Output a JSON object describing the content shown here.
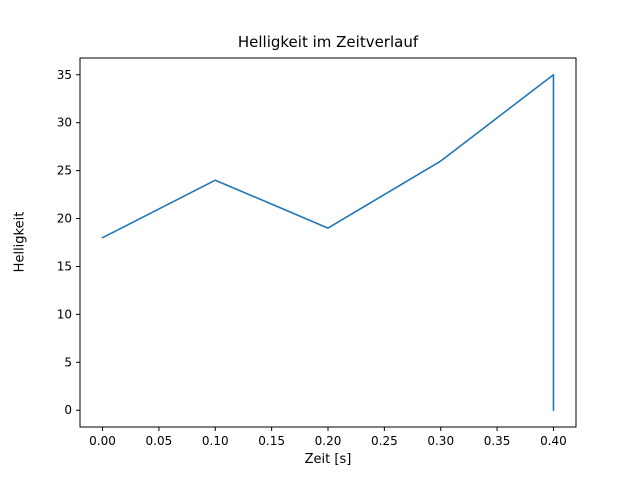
{
  "figure": {
    "background": "#ffffff",
    "text_color": "#000000",
    "spine_color": "#000000"
  },
  "chart_data": {
    "type": "line",
    "title": "Helligkeit im Zeitverlauf",
    "xlabel": "Zeit [s]",
    "ylabel": "Helligkeit",
    "series": [
      {
        "name": "Helligkeit",
        "x": [
          0.0,
          0.1,
          0.2,
          0.3,
          0.4,
          0.4
        ],
        "y": [
          18,
          24,
          19,
          26,
          35,
          0
        ],
        "color": "#1f77b4"
      }
    ],
    "xlim": [
      -0.02,
      0.42
    ],
    "ylim": [
      -1.75,
      36.75
    ],
    "xticks": {
      "values": [
        0.0,
        0.05,
        0.1,
        0.15,
        0.2,
        0.25,
        0.3,
        0.35,
        0.4
      ],
      "labels": [
        "0.00",
        "0.05",
        "0.10",
        "0.15",
        "0.20",
        "0.25",
        "0.30",
        "0.35",
        "0.40"
      ]
    },
    "yticks": {
      "values": [
        0,
        5,
        10,
        15,
        20,
        25,
        30,
        35
      ],
      "labels": [
        "0",
        "5",
        "10",
        "15",
        "20",
        "25",
        "30",
        "35"
      ]
    },
    "grid": false,
    "legend": "none"
  }
}
